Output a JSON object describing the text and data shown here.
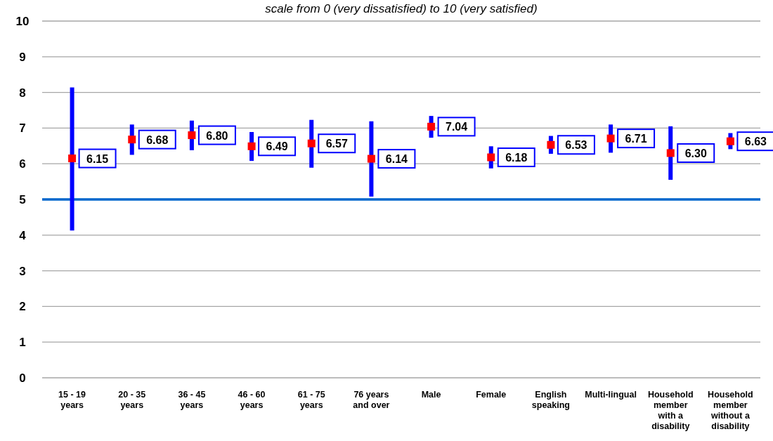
{
  "chart_data": {
    "type": "scatter",
    "title": "scale from 0 (very dissatisfied) to 10 (very satisfied)",
    "categories": [
      "15 - 19 years",
      "20 - 35 years",
      "36 - 45 years",
      "46 - 60 years",
      "61 - 75 years",
      "76 years and over",
      "Male",
      "Female",
      "English speaking",
      "Multi-lingual",
      "Household member with a disability",
      "Household member without a disability"
    ],
    "series": [
      {
        "color": "#ff0000",
        "values": [
          6.15,
          6.68,
          6.8,
          6.49,
          6.57,
          6.14,
          7.04,
          6.18,
          6.53,
          6.71,
          6.3,
          6.63
        ],
        "value_labels": [
          "6.15",
          "6.68",
          "6.80",
          "6.49",
          "6.57",
          "6.14",
          "7.04",
          "6.18",
          "6.53",
          "6.71",
          "6.30",
          "6.63"
        ],
        "errors": [
          [
            4.13,
            8.14
          ],
          [
            6.25,
            7.1
          ],
          [
            6.38,
            7.21
          ],
          [
            6.08,
            6.89
          ],
          [
            5.89,
            7.23
          ],
          [
            5.08,
            7.19
          ],
          [
            6.73,
            7.34
          ],
          [
            5.87,
            6.49
          ],
          [
            6.28,
            6.78
          ],
          [
            6.31,
            7.1
          ],
          [
            5.55,
            7.05
          ],
          [
            6.41,
            6.86
          ]
        ]
      }
    ],
    "ylim": [
      0,
      10
    ],
    "yticks": [
      0,
      1,
      2,
      3,
      4,
      5,
      6,
      7,
      8,
      9,
      10
    ],
    "grid": "y",
    "marker": "square",
    "ref_lines": [
      {
        "axis": "y",
        "value": 5,
        "color": "#0066cc"
      }
    ]
  }
}
